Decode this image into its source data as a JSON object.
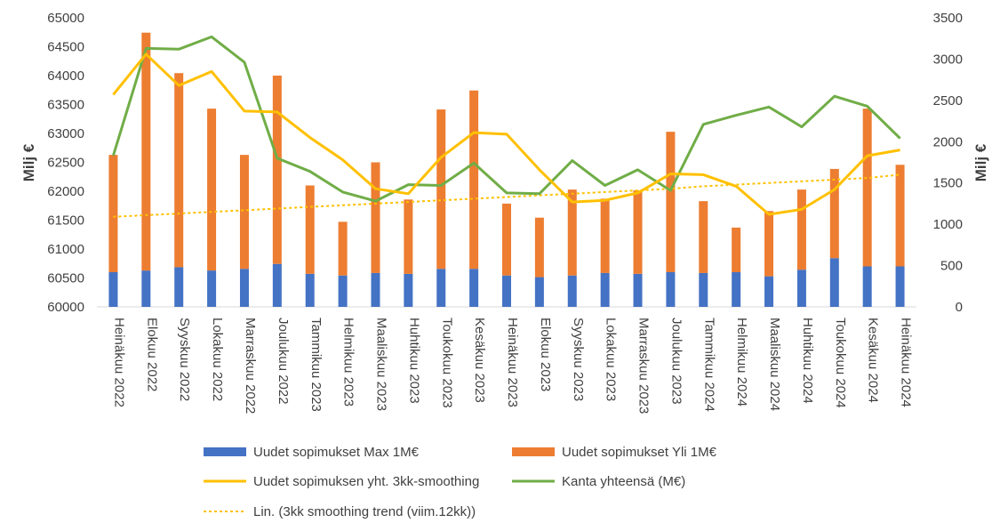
{
  "chart_data": {
    "type": "bar",
    "categories": [
      "Heinäkuu 2022",
      "Elokuu 2022",
      "Syyskuu 2022",
      "Lokakuu 2022",
      "Marraskuu 2022",
      "Joulukuu 2022",
      "Tammikuu 2023",
      "Helmikuu 2023",
      "Maaliskuu 2023",
      "Huhtikuu 2023",
      "Toukokuu 2023",
      "Kesäkuu 2023",
      "Heinäkuu 2023",
      "Elokuu 2023",
      "Syyskuu 2023",
      "Lokakuu 2023",
      "Marraskuu 2023",
      "Joulukuu 2023",
      "Tammikuu 2024",
      "Helmikuu 2024",
      "Maaliskuu 2024",
      "Huhtikuu 2024",
      "Toukokuu 2024",
      "Kesäkuu 2024",
      "Heinäkuu 2024"
    ],
    "ylabel_left": "Milj €",
    "ylabel_right": "Milj €",
    "ylim_left": [
      60000,
      65000
    ],
    "ylim_right": [
      0,
      3500
    ],
    "left_ticks": [
      "60000",
      "60500",
      "61000",
      "61500",
      "62000",
      "62500",
      "63000",
      "63500",
      "64000",
      "64500",
      "65000"
    ],
    "right_ticks": [
      "0",
      "500",
      "1000",
      "1500",
      "2000",
      "2500",
      "3000",
      "3500"
    ],
    "grid": false,
    "legend_position": "bottom",
    "series": [
      {
        "name": "Uudet sopimukset Max 1M€",
        "type": "stacked-bar",
        "axis": "right",
        "color": "#4472C4",
        "values": [
          420,
          440,
          480,
          440,
          460,
          520,
          400,
          380,
          410,
          400,
          460,
          460,
          380,
          360,
          380,
          410,
          400,
          420,
          410,
          420,
          370,
          450,
          590,
          490,
          490
        ]
      },
      {
        "name": "Uudet sopimukset Yli 1M€",
        "type": "stacked-bar",
        "axis": "right",
        "color": "#ED7D31",
        "values": [
          1420,
          2880,
          2350,
          1960,
          1380,
          2280,
          1070,
          650,
          1340,
          900,
          1930,
          2160,
          870,
          720,
          1040,
          900,
          1010,
          1700,
          870,
          540,
          790,
          970,
          1080,
          1910,
          1230
        ]
      },
      {
        "name": "Uudet sopimuksen yht. 3kk-smoothing",
        "type": "line",
        "axis": "right",
        "color": "#FFC000",
        "values": [
          2570,
          3060,
          2680,
          2850,
          2370,
          2360,
          2050,
          1780,
          1430,
          1370,
          1810,
          2110,
          2090,
          1660,
          1270,
          1290,
          1380,
          1610,
          1600,
          1460,
          1120,
          1180,
          1420,
          1830,
          1900
        ]
      },
      {
        "name": "Kanta yhteensä (M€)",
        "type": "line",
        "axis": "right",
        "color": "#70AD47",
        "values": [
          1830,
          3130,
          3120,
          3270,
          2960,
          1800,
          1640,
          1390,
          1280,
          1480,
          1470,
          1740,
          1380,
          1370,
          1770,
          1470,
          1660,
          1410,
          2210,
          2320,
          2420,
          2180,
          2550,
          2430,
          2040
        ]
      },
      {
        "name": "Lin. (3kk smoothing trend (viim.12kk))",
        "type": "trendline",
        "axis": "right",
        "color": "#FFC000",
        "values": [
          1090,
          1110,
          1130,
          1150,
          1170,
          1190,
          1210,
          1230,
          1250,
          1270,
          1290,
          1310,
          1330,
          1350,
          1370,
          1390,
          1410,
          1430,
          1460,
          1480,
          1500,
          1520,
          1540,
          1560,
          1600
        ]
      }
    ]
  }
}
